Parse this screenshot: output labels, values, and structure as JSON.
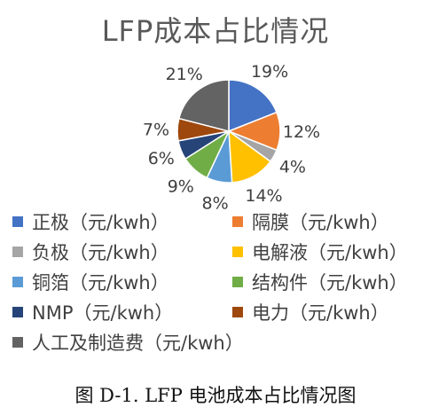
{
  "caption": "图 D-1. LFP 电池成本占比情况图",
  "chart_data": {
    "type": "pie",
    "title": "LFP成本占比情况",
    "start_angle_deg": 0,
    "direction": "clockwise",
    "slices": [
      {
        "label": "正极（元/kwh）",
        "value": 19,
        "display": "19%",
        "color": "#4472C4"
      },
      {
        "label": "隔膜（元/kwh）",
        "value": 12,
        "display": "12%",
        "color": "#ED7D31"
      },
      {
        "label": "负极（元/kwh）",
        "value": 4,
        "display": "4%",
        "color": "#A5A5A5"
      },
      {
        "label": "电解液（元/kwh）",
        "value": 14,
        "display": "14%",
        "color": "#FFC000"
      },
      {
        "label": "铜箔（元/kwh）",
        "value": 8,
        "display": "8%",
        "color": "#5B9BD5"
      },
      {
        "label": "结构件（元/kwh）",
        "value": 9,
        "display": "9%",
        "color": "#70AD47"
      },
      {
        "label": "NMP（元/kwh）",
        "value": 6,
        "display": "6%",
        "color": "#264478"
      },
      {
        "label": "电力（元/kwh）",
        "value": 7,
        "display": "7%",
        "color": "#9E480E"
      },
      {
        "label": "人工及制造费（元/kwh）",
        "value": 21,
        "display": "21%",
        "color": "#636363"
      }
    ],
    "legend_position": "bottom"
  }
}
